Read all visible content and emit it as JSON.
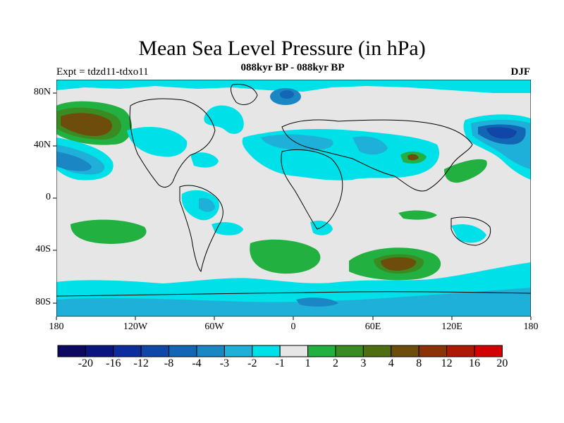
{
  "header": {
    "title": "Mean Sea Level Pressure (in hPa)",
    "subtitle": "088kyr BP - 088kyr BP",
    "left_label": "Expt = tdzd11-tdxo11",
    "right_label": "DJF"
  },
  "map": {
    "lat_labels": [
      "80N",
      "40N",
      "0",
      "40S",
      "80S"
    ],
    "lon_labels": [
      "180",
      "120W",
      "60W",
      "0",
      "60E",
      "120E",
      "180"
    ]
  },
  "colorbar": {
    "tick_labels": [
      "-20",
      "-16",
      "-12",
      "-8",
      "-4",
      "-3",
      "-2",
      "-1",
      "1",
      "2",
      "3",
      "4",
      "8",
      "12",
      "16",
      "20"
    ],
    "colors": [
      "#0d0860",
      "#0a1580",
      "#0d2d9c",
      "#1046a8",
      "#1366b4",
      "#1a86c4",
      "#1eb0d8",
      "#00e0e8",
      "#e6e6e6",
      "#22b040",
      "#3a8c22",
      "#4f6e12",
      "#6e4c0c",
      "#8c3208",
      "#ae1806",
      "#d00202"
    ]
  }
}
